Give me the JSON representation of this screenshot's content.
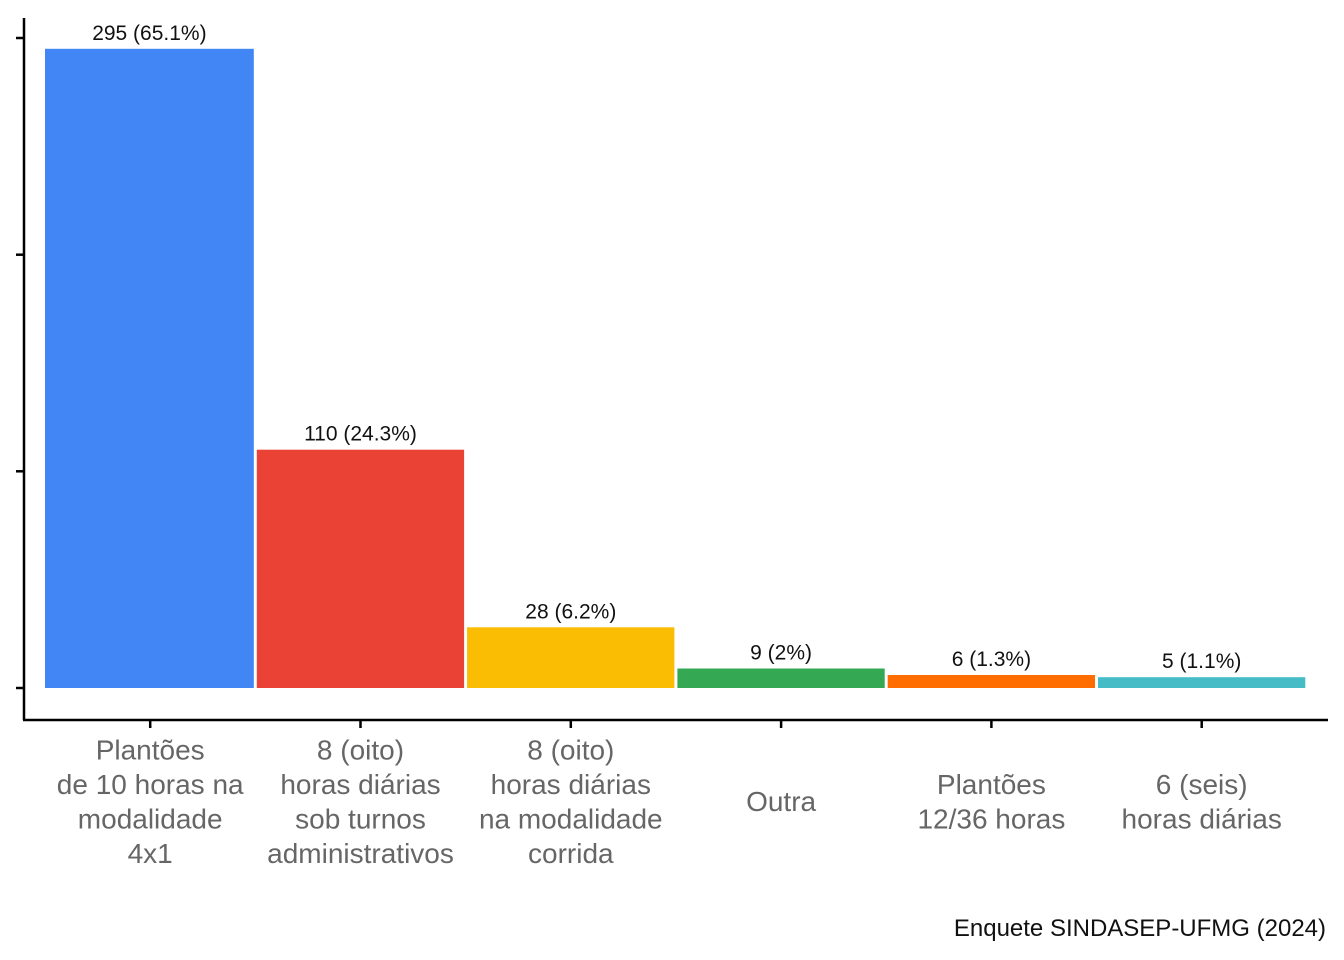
{
  "chart_data": {
    "type": "bar",
    "categories": [
      [
        "Plantões",
        "de 10 horas na",
        "modalidade",
        "4x1"
      ],
      [
        "8 (oito)",
        "horas diárias",
        "sob turnos",
        "administrativos"
      ],
      [
        "8 (oito)",
        "horas diárias",
        "na modalidade",
        "corrida"
      ],
      [
        "Outra"
      ],
      [
        "Plantões",
        "12/36 horas"
      ],
      [
        "6 (seis)",
        "horas diárias"
      ]
    ],
    "values": [
      295,
      110,
      28,
      9,
      6,
      5
    ],
    "data_labels": [
      "295 (65.1%)",
      "110 (24.3%)",
      "28 (6.2%)",
      "9 (2%)",
      "6 (1.3%)",
      "5 (1.1%)"
    ],
    "colors": [
      "#4285F4",
      "#EA4335",
      "#FBBC04",
      "#34A853",
      "#FF6D01",
      "#46BDC6"
    ],
    "ylim": [
      0,
      300
    ],
    "yticks": [
      0,
      100,
      200,
      300
    ],
    "grid": false,
    "xlabel": "",
    "ylabel": ""
  },
  "caption": "Enquete SINDASEP-UFMG (2024)"
}
